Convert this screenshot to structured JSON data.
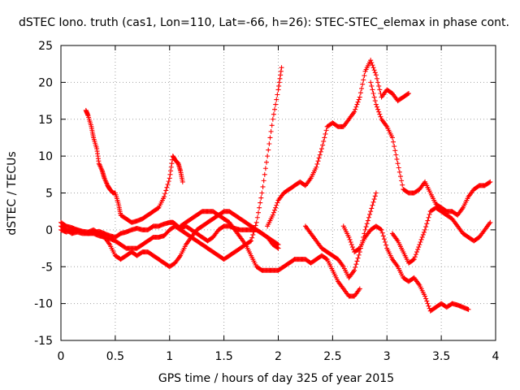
{
  "chart_data": {
    "type": "scatter",
    "title": "dSTEC Iono. truth (cas1, Lon=110, Lat=-66, h=26): STEC-STEC_elemax in phase cont.",
    "xlabel": "GPS time / hours of day 325 of year 2015",
    "ylabel": "dSTEC  / TECUs",
    "xlim": [
      0,
      4
    ],
    "ylim": [
      -15,
      25
    ],
    "x_ticks": [
      "0",
      "0.5",
      "1",
      "1.5",
      "2",
      "2.5",
      "3",
      "3.5",
      "4"
    ],
    "y_ticks": [
      "-15",
      "-10",
      "-5",
      "0",
      "5",
      "10",
      "15",
      "20",
      "25"
    ],
    "grid": true,
    "marker": "plus",
    "color": "#ff0000",
    "series": [
      {
        "x": [
          0.0,
          0.05,
          0.1,
          0.15,
          0.2,
          0.25,
          0.3,
          0.35,
          0.4,
          0.45,
          0.5,
          0.55,
          0.6,
          0.65,
          0.7,
          0.75,
          0.8,
          0.85,
          0.9,
          0.95,
          1.0,
          1.03,
          1.05,
          1.1,
          1.15,
          1.2,
          1.25,
          1.3,
          1.35,
          1.4,
          1.45,
          1.5,
          1.55,
          1.6,
          1.65,
          1.7,
          1.75,
          1.8,
          1.85,
          1.9,
          1.95,
          2.0
        ],
        "y": [
          0.5,
          0.0,
          -0.5,
          -0.3,
          -0.5,
          -0.5,
          -0.4,
          -0.2,
          -0.5,
          -0.8,
          -1.0,
          -0.5,
          -0.3,
          0.0,
          0.2,
          0.0,
          0.0,
          0.5,
          0.5,
          0.8,
          1.0,
          1.0,
          0.8,
          0.2,
          0.5,
          0.0,
          -0.5,
          -1.0,
          -1.5,
          -1.0,
          0.0,
          0.5,
          0.5,
          0.2,
          0.0,
          0.0,
          0.0,
          0.0,
          -0.5,
          -1.0,
          -2.0,
          -2.5
        ]
      },
      {
        "x": [
          0.0,
          0.05,
          0.1,
          0.15,
          0.2,
          0.25,
          0.3,
          0.35,
          0.4,
          0.45,
          0.5,
          0.55,
          0.6,
          0.65,
          0.7,
          0.75,
          0.8,
          0.85,
          0.9,
          0.95,
          1.0,
          1.05,
          1.1,
          1.15,
          1.2,
          1.25,
          1.3,
          1.35,
          1.4,
          1.45,
          1.5,
          1.55,
          1.6,
          1.65,
          1.7,
          1.75,
          1.8,
          1.85,
          1.9,
          1.95,
          2.0
        ],
        "y": [
          0.0,
          -0.3,
          0.0,
          0.0,
          -0.2,
          -0.3,
          0.0,
          -0.5,
          -1.0,
          -2.0,
          -3.5,
          -4.0,
          -3.5,
          -3.0,
          -3.5,
          -3.0,
          -3.0,
          -3.5,
          -4.0,
          -4.5,
          -5.0,
          -4.5,
          -3.5,
          -2.0,
          -1.0,
          0.0,
          0.5,
          1.0,
          1.5,
          2.0,
          2.5,
          2.5,
          2.0,
          1.5,
          1.0,
          0.5,
          0.0,
          -0.5,
          -1.0,
          -1.5,
          -2.0
        ]
      },
      {
        "x": [
          0.23,
          0.25,
          0.28,
          0.3,
          0.33,
          0.35,
          0.38,
          0.4,
          0.43,
          0.45,
          0.48,
          0.5,
          0.53,
          0.55,
          0.6,
          0.65,
          0.7,
          0.75,
          0.8,
          0.85,
          0.9,
          0.95,
          1.0,
          1.03,
          1.05,
          1.08,
          1.1,
          1.12
        ],
        "y": [
          16.2,
          15.5,
          14.0,
          12.5,
          11.0,
          9.0,
          8.0,
          7.0,
          6.0,
          5.5,
          5.0,
          5.0,
          3.5,
          2.0,
          1.5,
          1.0,
          1.2,
          1.5,
          2.0,
          2.5,
          3.0,
          4.5,
          7.0,
          10.0,
          9.5,
          9.0,
          8.0,
          6.5
        ]
      },
      {
        "x": [
          0.0,
          0.05,
          0.1,
          0.15,
          0.2,
          0.25,
          0.3,
          0.35,
          0.4,
          0.45,
          0.5,
          0.55,
          0.6,
          0.65,
          0.7,
          0.75,
          0.8,
          0.85,
          0.9,
          0.95,
          1.0,
          1.05,
          1.1,
          1.15,
          1.2,
          1.25,
          1.3,
          1.35,
          1.4,
          1.45,
          1.5,
          1.55,
          1.6,
          1.65,
          1.7,
          1.75,
          1.8,
          1.85,
          1.9,
          1.95,
          2.0,
          2.03
        ],
        "y": [
          1.0,
          0.5,
          0.3,
          0.0,
          -0.3,
          -0.5,
          -0.5,
          -0.8,
          -1.0,
          -1.2,
          -1.5,
          -2.0,
          -2.5,
          -2.5,
          -2.5,
          -2.0,
          -1.5,
          -1.0,
          -1.0,
          -0.8,
          0.0,
          0.5,
          0.0,
          -0.5,
          -1.0,
          -1.5,
          -2.0,
          -2.5,
          -3.0,
          -3.5,
          -4.0,
          -3.5,
          -3.0,
          -2.5,
          -2.0,
          -1.5,
          1.0,
          5.0,
          10.0,
          15.0,
          19.0,
          22.0
        ]
      },
      {
        "x": [
          1.1,
          1.15,
          1.2,
          1.25,
          1.3,
          1.35,
          1.4,
          1.45,
          1.5,
          1.55,
          1.6,
          1.65,
          1.7,
          1.75,
          1.8,
          1.85,
          1.9,
          1.95,
          2.0,
          2.05,
          2.1,
          2.15,
          2.2,
          2.25,
          2.3,
          2.35,
          2.4,
          2.45,
          2.5,
          2.55,
          2.6,
          2.65,
          2.7,
          2.75
        ],
        "y": [
          0.5,
          1.0,
          1.5,
          2.0,
          2.5,
          2.5,
          2.5,
          2.0,
          1.5,
          1.0,
          0.0,
          -1.0,
          -2.0,
          -3.5,
          -5.0,
          -5.5,
          -5.5,
          -5.5,
          -5.5,
          -5.0,
          -4.5,
          -4.0,
          -4.0,
          -4.0,
          -4.5,
          -4.0,
          -3.5,
          -4.0,
          -5.5,
          -7.0,
          -8.0,
          -9.0,
          -9.0,
          -8.0
        ]
      },
      {
        "x": [
          1.9,
          1.95,
          2.0,
          2.05,
          2.1,
          2.15,
          2.2,
          2.25,
          2.3,
          2.35,
          2.4,
          2.45,
          2.5,
          2.55,
          2.6,
          2.65,
          2.7,
          2.75,
          2.8,
          2.85,
          2.9,
          2.95,
          3.0,
          3.05,
          3.1,
          3.15,
          3.2
        ],
        "y": [
          0.5,
          2.0,
          4.0,
          5.0,
          5.5,
          6.0,
          6.5,
          6.0,
          7.0,
          8.5,
          11.0,
          14.0,
          14.5,
          14.0,
          14.0,
          15.0,
          16.0,
          18.0,
          21.5,
          23.0,
          21.0,
          18.0,
          19.0,
          18.5,
          17.5,
          18.0,
          18.5
        ]
      },
      {
        "x": [
          2.85,
          2.9,
          2.95,
          3.0,
          3.05,
          3.1,
          3.15,
          3.2,
          3.25,
          3.3,
          3.35,
          3.4,
          3.45,
          3.5,
          3.55,
          3.6,
          3.65,
          3.7,
          3.75,
          3.8,
          3.85,
          3.9,
          3.95
        ],
        "y": [
          20.0,
          17.0,
          15.0,
          14.0,
          12.5,
          9.0,
          5.5,
          5.0,
          5.0,
          5.5,
          6.5,
          5.0,
          3.5,
          3.0,
          2.5,
          2.5,
          2.0,
          3.0,
          4.5,
          5.5,
          6.0,
          6.0,
          6.5
        ]
      },
      {
        "x": [
          2.6,
          2.65,
          2.7,
          2.75,
          2.8,
          2.85,
          2.9,
          2.95,
          3.0,
          3.05,
          3.1,
          3.15,
          3.2,
          3.25,
          3.3,
          3.35,
          3.4,
          3.45,
          3.5,
          3.55,
          3.6,
          3.65,
          3.7,
          3.75
        ],
        "y": [
          0.5,
          -1.0,
          -3.0,
          -2.5,
          -1.0,
          0.0,
          0.5,
          0.0,
          -2.5,
          -4.0,
          -5.0,
          -6.5,
          -7.0,
          -6.5,
          -7.5,
          -9.0,
          -11.0,
          -10.5,
          -10.0,
          -10.5,
          -10.0,
          -10.2,
          -10.5,
          -10.8
        ]
      },
      {
        "x": [
          3.05,
          3.1,
          3.15,
          3.2,
          3.25,
          3.3,
          3.35,
          3.4,
          3.45,
          3.5,
          3.55,
          3.6,
          3.65,
          3.7,
          3.75,
          3.8,
          3.85,
          3.9,
          3.95
        ],
        "y": [
          -0.5,
          -1.5,
          -3.0,
          -4.5,
          -4.0,
          -2.0,
          0.0,
          2.5,
          3.0,
          2.5,
          2.0,
          1.5,
          0.5,
          -0.5,
          -1.0,
          -1.5,
          -1.0,
          0.0,
          1.0
        ]
      },
      {
        "x": [
          2.25,
          2.3,
          2.35,
          2.4,
          2.45,
          2.5,
          2.55,
          2.6,
          2.65,
          2.7,
          2.75,
          2.8,
          2.85,
          2.9
        ],
        "y": [
          0.5,
          -0.5,
          -1.5,
          -2.5,
          -3.0,
          -3.5,
          -4.0,
          -5.0,
          -6.5,
          -5.5,
          -3.0,
          0.0,
          2.5,
          5.0
        ]
      }
    ]
  }
}
